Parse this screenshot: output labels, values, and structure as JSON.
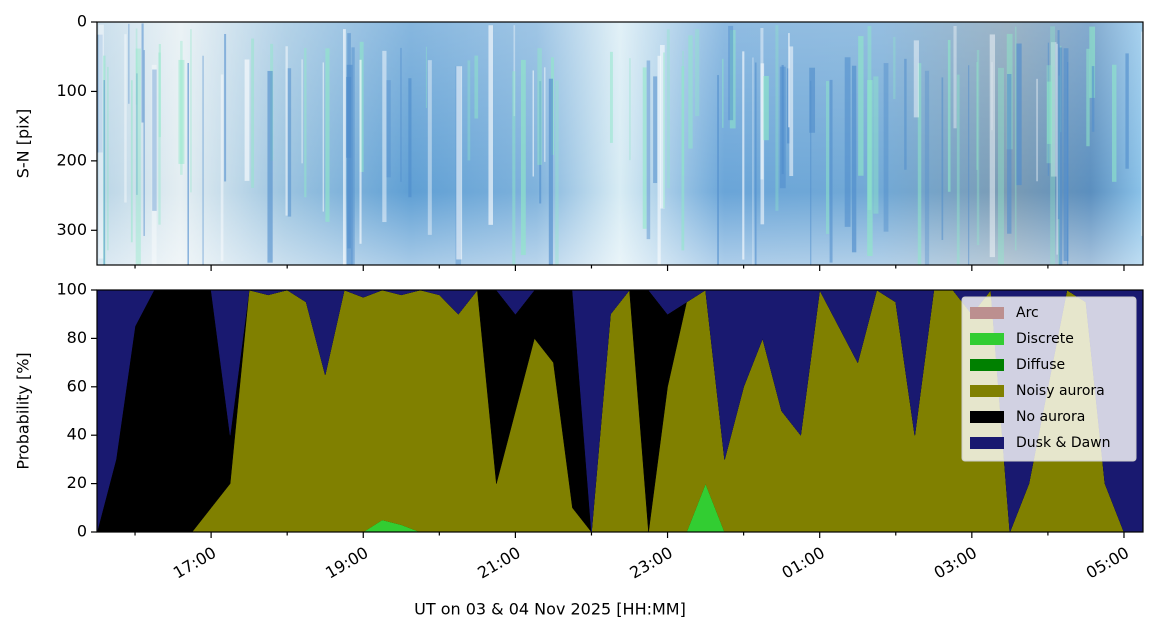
{
  "chart_data": [
    {
      "type": "image",
      "ylabel": "S-N [pix]",
      "ylim": [
        350,
        0
      ],
      "yticks": [
        0,
        100,
        200,
        300
      ],
      "xlim": [
        15.5,
        29.25
      ],
      "xticks": [
        17,
        19,
        21,
        23,
        25,
        27,
        29
      ],
      "xminor_ticks": [
        16,
        18,
        20,
        22,
        24,
        26,
        28
      ]
    },
    {
      "type": "area",
      "ylabel": "Probability [%]",
      "xlabel": "UT on 03 & 04 Nov 2025 [HH:MM]",
      "ylim": [
        0,
        100
      ],
      "yticks": [
        0,
        20,
        40,
        60,
        80,
        100
      ],
      "xlim": [
        15.5,
        29.25
      ],
      "xticks": [
        {
          "value": 17,
          "label": "17:00"
        },
        {
          "value": 19,
          "label": "19:00"
        },
        {
          "value": 21,
          "label": "21:00"
        },
        {
          "value": 23,
          "label": "23:00"
        },
        {
          "value": 25,
          "label": "01:00"
        },
        {
          "value": 27,
          "label": "03:00"
        },
        {
          "value": 29,
          "label": "05:00"
        }
      ],
      "xminor_ticks": [
        16,
        18,
        20,
        22,
        24,
        26,
        28
      ],
      "legend": "upper right",
      "x": [
        15.5,
        15.75,
        16,
        16.25,
        16.5,
        16.75,
        17,
        17.25,
        17.5,
        17.75,
        18,
        18.25,
        18.5,
        18.75,
        19,
        19.25,
        19.5,
        19.75,
        20,
        20.25,
        20.5,
        20.75,
        21,
        21.25,
        21.5,
        21.75,
        22,
        22.25,
        22.5,
        22.75,
        23,
        23.25,
        23.5,
        23.75,
        24,
        24.25,
        24.5,
        24.75,
        25,
        25.25,
        25.5,
        25.75,
        26,
        26.25,
        26.5,
        26.75,
        27,
        27.25,
        27.5,
        27.75,
        28,
        28.25,
        28.5,
        28.75,
        29,
        29.25
      ],
      "series": [
        {
          "name": "Arc",
          "color": "#bc8f8f",
          "values": [
            0,
            0,
            0,
            0,
            0,
            0,
            0,
            0,
            0,
            0,
            0,
            0,
            0,
            0,
            0,
            0,
            0,
            0,
            0,
            0,
            0,
            0,
            0,
            0,
            0,
            0,
            0,
            0,
            0,
            0,
            0,
            0,
            0,
            0,
            0,
            0,
            0,
            0,
            0,
            0,
            0,
            0,
            0,
            0,
            0,
            0,
            0,
            0,
            0,
            0,
            0,
            0,
            0,
            0,
            0,
            0
          ]
        },
        {
          "name": "Discrete",
          "color": "#32cd32",
          "values": [
            0,
            0,
            0,
            0,
            0,
            0,
            0,
            0,
            0,
            0,
            0,
            0,
            0,
            0,
            0,
            5,
            3,
            0,
            0,
            0,
            0,
            0,
            0,
            0,
            0,
            0,
            0,
            0,
            0,
            0,
            0,
            0,
            20,
            0,
            0,
            0,
            0,
            0,
            0,
            0,
            0,
            0,
            0,
            0,
            0,
            0,
            0,
            0,
            0,
            0,
            0,
            0,
            0,
            0,
            0,
            0
          ]
        },
        {
          "name": "Diffuse",
          "color": "#008000",
          "values": [
            0,
            0,
            0,
            0,
            0,
            0,
            0,
            0,
            0,
            0,
            0,
            0,
            0,
            0,
            0,
            0,
            0,
            0,
            0,
            0,
            0,
            0,
            0,
            0,
            0,
            0,
            0,
            0,
            0,
            0,
            0,
            0,
            0,
            0,
            0,
            0,
            0,
            0,
            0,
            0,
            0,
            0,
            0,
            0,
            0,
            0,
            0,
            0,
            0,
            0,
            0,
            0,
            0,
            0,
            0,
            0
          ]
        },
        {
          "name": "Noisy aurora",
          "color": "#808000",
          "values": [
            0,
            0,
            0,
            0,
            0,
            0,
            10,
            20,
            100,
            98,
            100,
            95,
            65,
            100,
            97,
            95,
            95,
            100,
            98,
            90,
            100,
            20,
            50,
            80,
            70,
            10,
            0,
            90,
            100,
            0,
            60,
            95,
            80,
            30,
            60,
            80,
            50,
            40,
            100,
            85,
            70,
            100,
            95,
            40,
            100,
            100,
            90,
            100,
            0,
            20,
            60,
            100,
            95,
            20,
            0,
            0
          ]
        },
        {
          "name": "No aurora",
          "color": "#000000",
          "values": [
            0,
            30,
            85,
            100,
            100,
            100,
            90,
            20,
            0,
            0,
            0,
            0,
            0,
            0,
            0,
            0,
            0,
            0,
            0,
            0,
            0,
            80,
            40,
            20,
            30,
            90,
            0,
            0,
            0,
            100,
            30,
            0,
            0,
            0,
            0,
            0,
            0,
            0,
            0,
            0,
            0,
            0,
            0,
            0,
            0,
            0,
            0,
            0,
            0,
            0,
            0,
            0,
            0,
            0,
            0,
            0
          ]
        },
        {
          "name": "Dusk & Dawn",
          "color": "#191970",
          "values": [
            100,
            70,
            15,
            0,
            0,
            0,
            0,
            60,
            0,
            2,
            0,
            5,
            35,
            0,
            3,
            0,
            2,
            0,
            2,
            10,
            0,
            0,
            10,
            0,
            0,
            0,
            100,
            10,
            0,
            0,
            10,
            5,
            0,
            70,
            40,
            20,
            50,
            60,
            0,
            15,
            30,
            0,
            5,
            60,
            0,
            0,
            10,
            0,
            100,
            80,
            40,
            0,
            5,
            80,
            100,
            100
          ]
        }
      ]
    }
  ]
}
